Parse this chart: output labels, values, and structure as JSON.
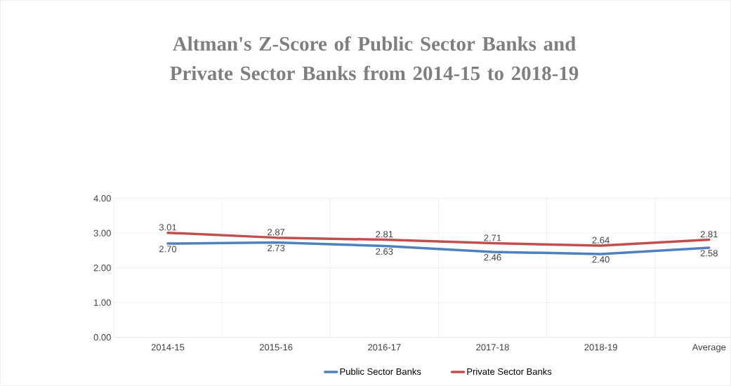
{
  "chart_data": {
    "type": "line",
    "title": "Altman's Z-Score of Public Sector Banks and Private Sector Banks from 2014-15 to 2018-19",
    "categories": [
      "2014-15",
      "2015-16",
      "2016-17",
      "2017-18",
      "2018-19",
      "Average"
    ],
    "series": [
      {
        "name": "Public Sector Banks",
        "color": "#4f81bd",
        "values": [
          2.7,
          2.73,
          2.63,
          2.46,
          2.4,
          2.58
        ],
        "value_labels": [
          "2.70",
          "2.73",
          "2.63",
          "2.46",
          "2.40",
          "2.58"
        ]
      },
      {
        "name": "Private Sector Banks",
        "color": "#c0504d",
        "values": [
          3.01,
          2.87,
          2.81,
          2.71,
          2.64,
          2.81
        ],
        "value_labels": [
          "3.01",
          "2.87",
          "2.81",
          "2.71",
          "2.64",
          "2.81"
        ]
      }
    ],
    "ylim": [
      0,
      4
    ],
    "yticks": [
      {
        "value": 0,
        "label": "0.00"
      },
      {
        "value": 1,
        "label": "1.00"
      },
      {
        "value": 2,
        "label": "2.00"
      },
      {
        "value": 3,
        "label": "3.00"
      },
      {
        "value": 4,
        "label": "4.00"
      }
    ],
    "grid": true,
    "legend": "bottom",
    "marker": "none",
    "line_style": "solid"
  }
}
